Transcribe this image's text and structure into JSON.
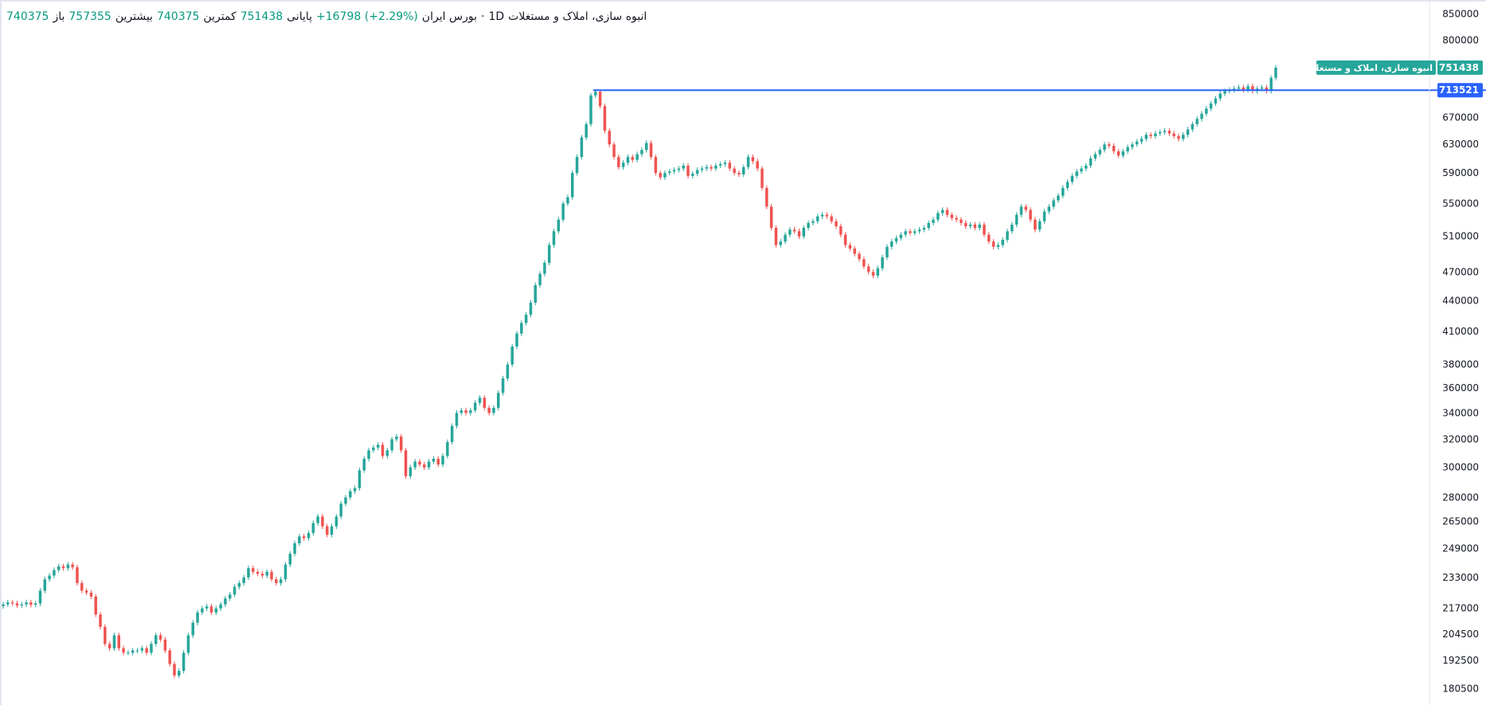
{
  "legend": {
    "title": "انبوه سازی، املاک و مستغلات",
    "interval": "1D",
    "exchange": "بورس ایران",
    "open_label": "باز",
    "open_value": "740375",
    "high_label": "بیشترین",
    "high_value": "757355",
    "low_label": "کمترین",
    "low_value": "740375",
    "close_label": "پایانی",
    "close_value": "751438",
    "change_value": "+16798 (+2.29%)"
  },
  "price_tag": {
    "value": "751438",
    "name": "انبوه سازی، املاک و مستغلات",
    "color": "#26a69a"
  },
  "level_tag": {
    "value": "713521",
    "color": "#2962ff"
  },
  "chart_data": {
    "type": "candlestick",
    "y_scale": "log",
    "ylim": [
      178000,
      865000
    ],
    "y_ticks": [
      850000,
      800000,
      750000,
      710000,
      670000,
      630000,
      590000,
      550000,
      510000,
      470000,
      440000,
      410000,
      380000,
      360000,
      340000,
      320000,
      300000,
      280000,
      265000,
      249000,
      233000,
      217000,
      204500,
      192500,
      180500
    ],
    "horizontal_level": 713521,
    "last_price": 751438,
    "up_color": "#26a69a",
    "down_color": "#ef5350",
    "closes": [
      219000,
      220000,
      219500,
      218500,
      219000,
      220000,
      218800,
      219500,
      226000,
      232000,
      234000,
      237000,
      239000,
      238000,
      240000,
      238500,
      230000,
      226000,
      225000,
      223000,
      214000,
      208000,
      200000,
      198000,
      204000,
      198000,
      196000,
      196000,
      197000,
      197000,
      198000,
      196000,
      200000,
      204000,
      202000,
      197000,
      191000,
      186000,
      188000,
      196000,
      204000,
      210000,
      215000,
      217000,
      218000,
      215000,
      217000,
      219000,
      222000,
      224000,
      228000,
      230000,
      233000,
      238000,
      236000,
      235000,
      234000,
      236000,
      232000,
      230000,
      232000,
      240000,
      246000,
      252000,
      256000,
      255000,
      258000,
      264000,
      268000,
      262000,
      257000,
      262000,
      268000,
      276000,
      280000,
      284000,
      286000,
      298000,
      306000,
      312000,
      314000,
      316000,
      308000,
      312000,
      320000,
      322000,
      312000,
      294000,
      300000,
      304000,
      302000,
      300000,
      304000,
      306000,
      302000,
      308000,
      318000,
      330000,
      340000,
      342000,
      340000,
      342000,
      348000,
      352000,
      344000,
      340000,
      344000,
      356000,
      368000,
      380000,
      396000,
      408000,
      418000,
      426000,
      438000,
      456000,
      468000,
      480000,
      500000,
      516000,
      530000,
      550000,
      558000,
      590000,
      612000,
      640000,
      660000,
      705000,
      711000,
      688000,
      650000,
      630000,
      612000,
      598000,
      604000,
      612000,
      608000,
      616000,
      622000,
      632000,
      612000,
      590000,
      584000,
      590000,
      592000,
      594000,
      596000,
      600000,
      586000,
      589000,
      594000,
      596000,
      598000,
      596000,
      600000,
      602000,
      604000,
      596000,
      590000,
      588000,
      598000,
      612000,
      606000,
      596000,
      570000,
      546000,
      520000,
      500000,
      504000,
      512000,
      518000,
      516000,
      510000,
      520000,
      526000,
      528000,
      534000,
      536000,
      534000,
      528000,
      522000,
      512000,
      500000,
      496000,
      490000,
      484000,
      476000,
      470000,
      466000,
      474000,
      486000,
      498000,
      504000,
      508000,
      512000,
      516000,
      514000,
      516000,
      518000,
      520000,
      526000,
      530000,
      538000,
      542000,
      536000,
      532000,
      530000,
      526000,
      522000,
      524000,
      520000,
      524000,
      512000,
      504000,
      498000,
      500000,
      506000,
      516000,
      524000,
      536000,
      546000,
      542000,
      530000,
      518000,
      528000,
      540000,
      546000,
      554000,
      560000,
      570000,
      578000,
      586000,
      592000,
      596000,
      600000,
      610000,
      616000,
      622000,
      630000,
      628000,
      620000,
      614000,
      620000,
      626000,
      630000,
      634000,
      638000,
      644000,
      642000,
      646000,
      648000,
      650000,
      646000,
      642000,
      638000,
      644000,
      652000,
      660000,
      668000,
      676000,
      684000,
      692000,
      700000,
      708000,
      712000,
      714000,
      716000,
      718000,
      714000,
      720000,
      712000,
      716000,
      718000,
      712000,
      734000,
      751438
    ]
  }
}
